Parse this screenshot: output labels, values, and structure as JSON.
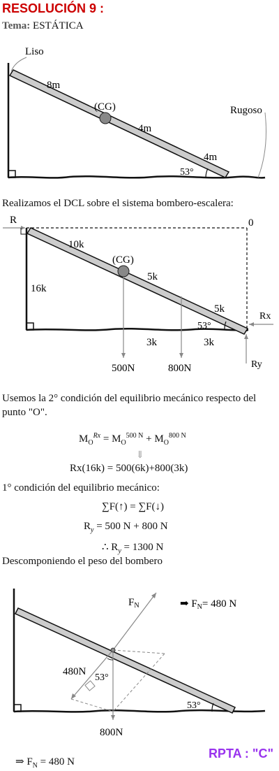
{
  "header": {
    "title": "RESOLUCIÓN 9 :",
    "topic_label": "Tema:",
    "topic_value": "ESTÁTICA"
  },
  "fig1": {
    "liso": "Liso",
    "rugoso": "Rugoso",
    "cg": "(CG)",
    "seg1": "8m",
    "seg2": "4m",
    "seg3": "4m",
    "angle": "53°"
  },
  "text1": "Realizamos el DCL sobre el sistema bombero-escalera:",
  "fig2": {
    "r": "R",
    "o": "0",
    "seg1": "10k",
    "cg": "(CG)",
    "seg2": "5k",
    "seg3": "5k",
    "height": "16k",
    "angle": "53°",
    "rx": "Rx",
    "ry": "Ry",
    "h1": "3k",
    "h2": "3k",
    "w1": "500N",
    "w2": "800N"
  },
  "text2": "Usemos la 2° condición del equilibrio mecánico respecto del punto \"O\".",
  "eq1": {
    "m": "M",
    "o": "O",
    "rx": "Rx",
    "n500": "500 N",
    "n800": "800 N",
    "plus": "+",
    "arrow": "⇓"
  },
  "eq2": "Rx(16k) = 500(6k)+800(3k)",
  "text3": "1° condición del equilibrio mecánico:",
  "eq3": "∑F(↑) = ∑F(↓)",
  "eq4": {
    "left": "R",
    "sub": "y",
    "right": "= 500 N + 800 N"
  },
  "eq5": {
    "therefore": "∴ R",
    "sub": "y",
    "right": "= 1300 N"
  },
  "text4": "Descomponiendo el peso del bombero",
  "fig3": {
    "fn": "F",
    "fn_sub": "N",
    "result": "➡ F",
    "result_sub": "N",
    "result_val": "= 480 N",
    "comp": "480N",
    "angle_in": "53°",
    "angle_floor": "53°",
    "weight": "800N"
  },
  "final": {
    "arrow": "⇒ F",
    "sub": "N",
    "val": "= 480 N"
  },
  "rpta": "RPTA : \"C\""
}
